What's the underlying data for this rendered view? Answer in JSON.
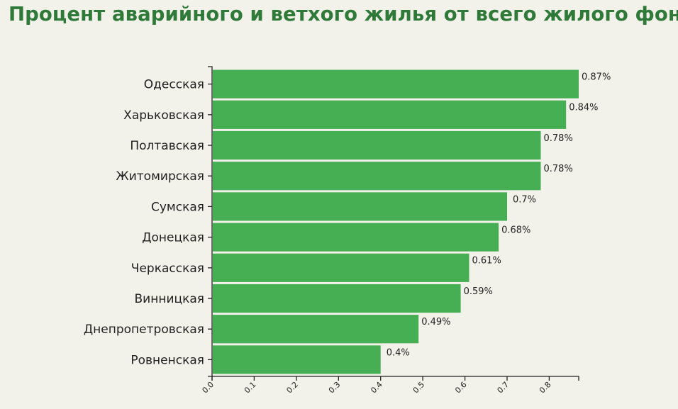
{
  "page": {
    "title": "Процент аварийного и ветхого жилья от всего жилого фонда"
  },
  "colors": {
    "background": "#f2f1ea",
    "bar": "#46ae53",
    "title": "#2f7a38"
  },
  "chart_data": {
    "type": "bar",
    "orientation": "horizontal",
    "title": "Процент аварийного и ветхого жилья от всего жилого фонда",
    "xlabel": "",
    "ylabel": "",
    "categories": [
      "Одесская",
      "Харьковская",
      "Полтавская",
      "Житомирская",
      "Сумская",
      "Донецкая",
      "Черкасская",
      "Винницкая",
      "Днепропетровская",
      "Ровненская"
    ],
    "values": [
      0.87,
      0.84,
      0.78,
      0.78,
      0.7,
      0.68,
      0.61,
      0.59,
      0.49,
      0.4
    ],
    "value_labels": [
      "0.87%",
      "0.84%",
      "0.78%",
      "0.78%",
      "0.7%",
      "0.68%",
      "0.61%",
      "0.59%",
      "0.49%",
      "0.4%"
    ],
    "x_ticks": [
      "0.0",
      "0.1",
      "0.2",
      "0.3",
      "0.4",
      "0.5",
      "0.6",
      "0.7",
      "0.8"
    ],
    "xlim": [
      0,
      0.87
    ],
    "grid": false,
    "legend": "none"
  }
}
